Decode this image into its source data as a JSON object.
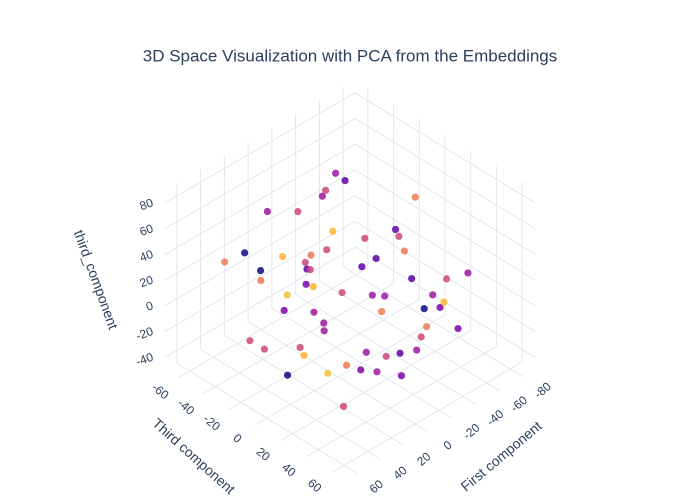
{
  "chart_data": {
    "type": "scatter3d",
    "title": "3D Space Visualization with PCA from the Embeddings",
    "xlabel": "First component",
    "ylabel": "Third component",
    "zlabel": "third_component",
    "xlim": [
      -90,
      70
    ],
    "xticks": [
      -80,
      -60,
      -40,
      -20,
      0,
      20,
      40,
      60
    ],
    "ylim": [
      -70,
      70
    ],
    "yticks": [
      -60,
      -40,
      -20,
      0,
      20,
      40,
      60
    ],
    "zlim": [
      -50,
      90
    ],
    "zticks": [
      -40,
      -20,
      0,
      20,
      40,
      60,
      80
    ],
    "grid": true,
    "series": [
      {
        "x": [
          -60,
          -55,
          -50,
          -45,
          -40,
          -35,
          -30,
          -25,
          -20,
          -15,
          -10,
          -5,
          0,
          5,
          10,
          15,
          20,
          25,
          30,
          35,
          40,
          45,
          50,
          55,
          -70,
          -65,
          -58,
          -48,
          -38,
          -28,
          -18,
          -8,
          2,
          12,
          22,
          32,
          42,
          52,
          -75,
          -62,
          -52,
          -42,
          -32,
          -22,
          -12,
          -2,
          8,
          18,
          28,
          38,
          48,
          58,
          -66,
          -44,
          -24,
          -4,
          16,
          36,
          -36,
          6
        ],
        "y": [
          -50,
          -30,
          -10,
          10,
          30,
          50,
          -40,
          -20,
          0,
          20,
          40,
          60,
          -55,
          -35,
          -15,
          5,
          25,
          45,
          -45,
          -25,
          -5,
          15,
          35,
          55,
          -20,
          0,
          20,
          40,
          -60,
          -30,
          10,
          30,
          50,
          -10,
          -40,
          0,
          20,
          40,
          10,
          -10,
          -50,
          30,
          0,
          -30,
          50,
          -45,
          25,
          -5,
          15,
          -25,
          5,
          -15,
          40,
          -60,
          35,
          -35,
          45,
          -55,
          60,
          -20
        ],
        "z": [
          40,
          10,
          -20,
          30,
          0,
          20,
          50,
          -10,
          25,
          5,
          -30,
          15,
          45,
          -5,
          30,
          60,
          -15,
          10,
          35,
          -25,
          20,
          0,
          40,
          -10,
          15,
          55,
          -5,
          25,
          -35,
          30,
          10,
          -20,
          0,
          45,
          20,
          -10,
          35,
          5,
          -30,
          20,
          50,
          -15,
          25,
          65,
          -5,
          15,
          -25,
          40,
          10,
          30,
          -20,
          0,
          20,
          -40,
          35,
          55,
          -10,
          25,
          5,
          30
        ],
        "colors": [
          "#5c01a6",
          "#cc4778",
          "#9c179e",
          "#ed7953",
          "#0d0887",
          "#fdb42f",
          "#9c179e",
          "#cc4778",
          "#5c01a6",
          "#ed7953",
          "#7e03a8",
          "#cc4778",
          "#9c179e",
          "#f0c035",
          "#5c01a6",
          "#cc4778",
          "#ed7953",
          "#9c179e",
          "#0d0887",
          "#cc4778",
          "#7e03a8",
          "#fdb42f",
          "#9c179e",
          "#cc4778",
          "#5c01a6",
          "#ed7953",
          "#9c179e",
          "#cc4778",
          "#7e03a8",
          "#fdb42f",
          "#9c179e",
          "#cc4778",
          "#5c01a6",
          "#ed7953",
          "#0d0887",
          "#cc4778",
          "#9c179e",
          "#f0c035",
          "#7e03a8",
          "#cc4778",
          "#9c179e",
          "#ed7953",
          "#5c01a6",
          "#cc4778",
          "#9c179e",
          "#fdb42f",
          "#7e03a8",
          "#cc4778",
          "#9c179e",
          "#ed7953",
          "#0d0887",
          "#cc4778",
          "#9c179e",
          "#fdb42f",
          "#5c01a6",
          "#cc4778",
          "#9c179e",
          "#ed7953",
          "#7e03a8",
          "#cc4778"
        ]
      }
    ]
  }
}
